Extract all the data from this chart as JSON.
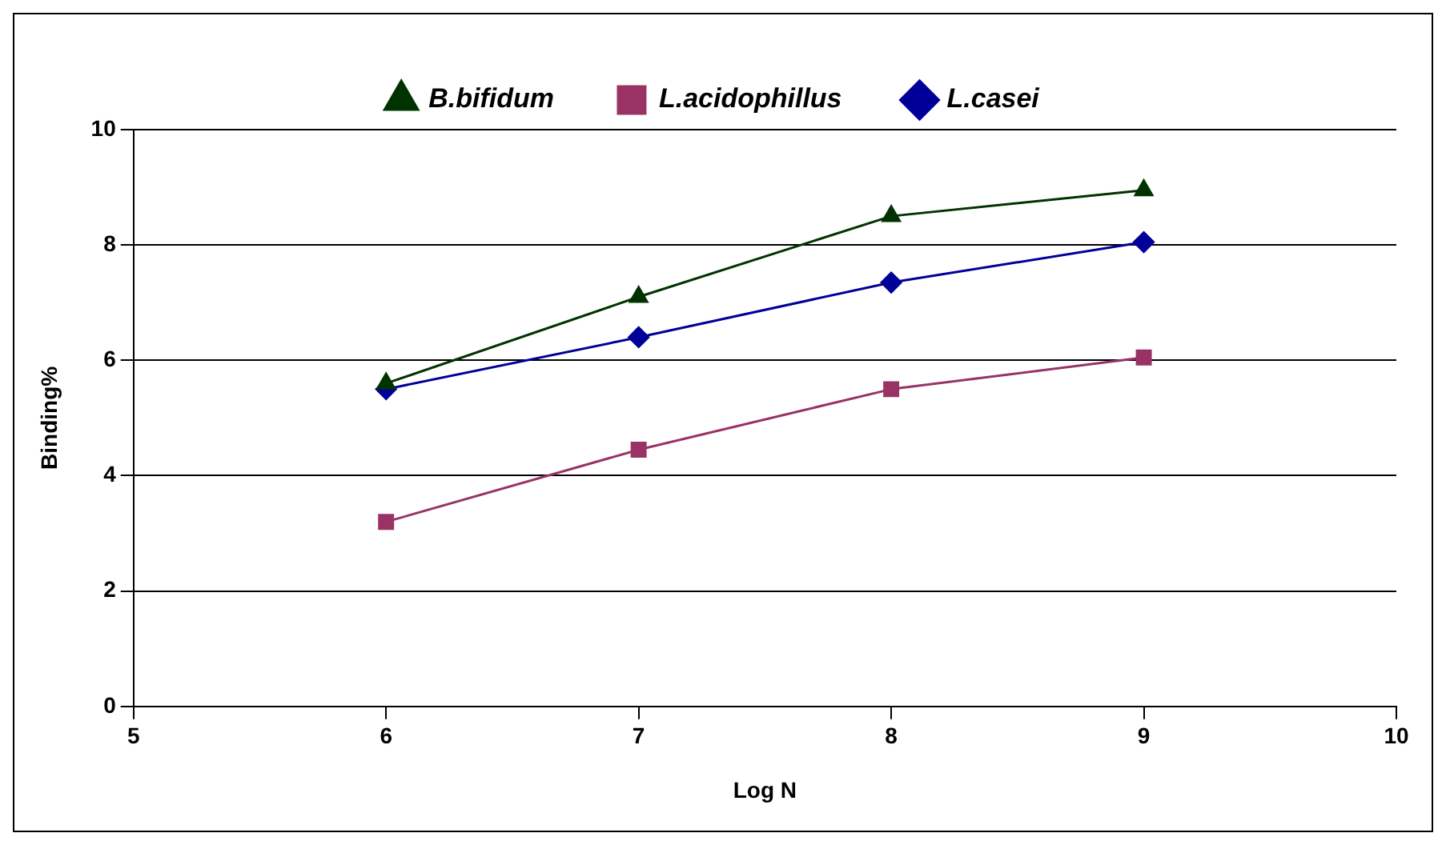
{
  "chart_data": {
    "type": "line",
    "xlabel": "Log N",
    "ylabel": "Binding%",
    "x": [
      6,
      7,
      8,
      9
    ],
    "series": [
      {
        "name": "L.casei",
        "color": "#000099",
        "marker": "diamond",
        "values": [
          5.5,
          6.4,
          7.35,
          8.05
        ]
      },
      {
        "name": "L.acidophillus",
        "color": "#993366",
        "marker": "square",
        "values": [
          3.2,
          4.45,
          5.5,
          6.05
        ]
      },
      {
        "name": "B.bifidum",
        "color": "#003300",
        "marker": "triangle",
        "values": [
          5.6,
          7.1,
          8.5,
          8.95
        ]
      }
    ],
    "xlim": [
      5,
      10
    ],
    "xticks": [
      5,
      6,
      7,
      8,
      9,
      10
    ],
    "ylim": [
      0,
      10
    ],
    "yticks": [
      0,
      2,
      4,
      6,
      8,
      10
    ],
    "grid": "y",
    "legend": "top",
    "line_style": "solid"
  }
}
